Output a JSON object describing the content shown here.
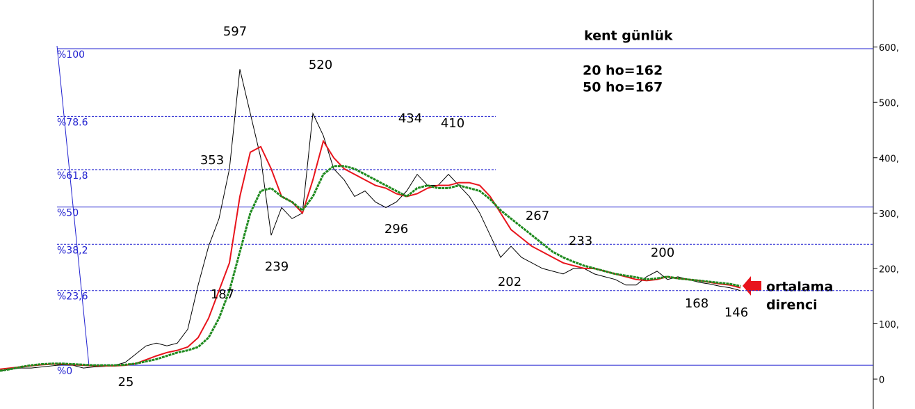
{
  "chart_data": {
    "type": "line",
    "title": "kent günlük",
    "subtitle_lines": [
      "20 ho=162",
      "50 ho=167"
    ],
    "note_lines": [
      "ortalama",
      "direnci"
    ],
    "categories": [
      null,
      null,
      null,
      null,
      null,
      null,
      null,
      null,
      null,
      null,
      null,
      null,
      null,
      null,
      null,
      null,
      null,
      null,
      null,
      null,
      null,
      null,
      null,
      null,
      null,
      null,
      null,
      null,
      null,
      null,
      null,
      null,
      null,
      null,
      null,
      null,
      null,
      null,
      null,
      null,
      null,
      null,
      null,
      null,
      null,
      null,
      null,
      null,
      null,
      null,
      null,
      null,
      null,
      null,
      null,
      null,
      null,
      null,
      null,
      null,
      null,
      null,
      null,
      null,
      null,
      null,
      null,
      null,
      null,
      null,
      null,
      null
    ],
    "series": [
      {
        "color": "#000000",
        "values": [
          15,
          18,
          20,
          20,
          22,
          24,
          26,
          25,
          20,
          22,
          23,
          25,
          30,
          45,
          60,
          65,
          60,
          65,
          90,
          170,
          240,
          290,
          380,
          560,
          480,
          400,
          260,
          310,
          290,
          300,
          480,
          440,
          380,
          360,
          330,
          340,
          320,
          310,
          320,
          340,
          370,
          350,
          350,
          370,
          350,
          330,
          300,
          260,
          220,
          240,
          220,
          210,
          200,
          195,
          190,
          200,
          200,
          190,
          185,
          180,
          170,
          170,
          185,
          195,
          180,
          185,
          180,
          175,
          172,
          168,
          165,
          160
        ]
      },
      {
        "color": "#e8141c",
        "values": [
          18,
          20,
          22,
          24,
          26,
          27,
          27,
          26,
          25,
          24,
          24,
          24,
          25,
          28,
          35,
          42,
          48,
          52,
          58,
          75,
          110,
          160,
          210,
          330,
          410,
          420,
          380,
          330,
          320,
          300,
          360,
          430,
          400,
          380,
          370,
          360,
          350,
          345,
          335,
          330,
          335,
          345,
          350,
          350,
          355,
          355,
          350,
          330,
          300,
          270,
          255,
          240,
          230,
          220,
          210,
          205,
          200,
          200,
          195,
          190,
          185,
          180,
          178,
          180,
          185,
          182,
          180,
          178,
          175,
          172,
          170,
          165
        ]
      },
      {
        "color": "#1e8a1e",
        "values": [
          15,
          18,
          22,
          25,
          27,
          28,
          28,
          27,
          26,
          25,
          25,
          25,
          26,
          28,
          32,
          36,
          42,
          48,
          52,
          58,
          75,
          110,
          160,
          230,
          300,
          340,
          345,
          330,
          320,
          305,
          330,
          370,
          385,
          385,
          380,
          370,
          360,
          350,
          340,
          330,
          345,
          350,
          345,
          345,
          350,
          345,
          340,
          325,
          305,
          290,
          275,
          260,
          245,
          230,
          220,
          212,
          205,
          200,
          195,
          190,
          187,
          184,
          180,
          182,
          185,
          182,
          180,
          178,
          176,
          174,
          172,
          168
        ]
      }
    ],
    "annotations": [
      "597",
      "520",
      "434",
      "410",
      "353",
      "296",
      "239",
      "267",
      "233",
      "200",
      "202",
      "187",
      "168",
      "146",
      "25"
    ],
    "fib_levels": [
      {
        "label": "%100",
        "value": 597,
        "style": "solid"
      },
      {
        "label": "%78.6",
        "value": 474.6,
        "style": "dashed"
      },
      {
        "label": "%61,8",
        "value": 378.5,
        "style": "dashed"
      },
      {
        "label": "%50",
        "value": 311,
        "style": "solid"
      },
      {
        "label": "%38,2",
        "value": 243.5,
        "style": "dashed"
      },
      {
        "label": "%23,6",
        "value": 160,
        "style": "dashed"
      },
      {
        "label": "%0",
        "value": 25,
        "style": "solid"
      }
    ],
    "fib_color": "#2020d0",
    "ylim": [
      -54,
      685
    ],
    "yticks": [
      {
        "value": 0,
        "label": "0"
      },
      {
        "value": 100,
        "label": "100,"
      },
      {
        "value": 200,
        "label": "200,"
      },
      {
        "value": 300,
        "label": "300,"
      },
      {
        "value": 400,
        "label": "400,"
      },
      {
        "value": 500,
        "label": "500,"
      },
      {
        "value": 600,
        "label": "600,"
      }
    ]
  }
}
